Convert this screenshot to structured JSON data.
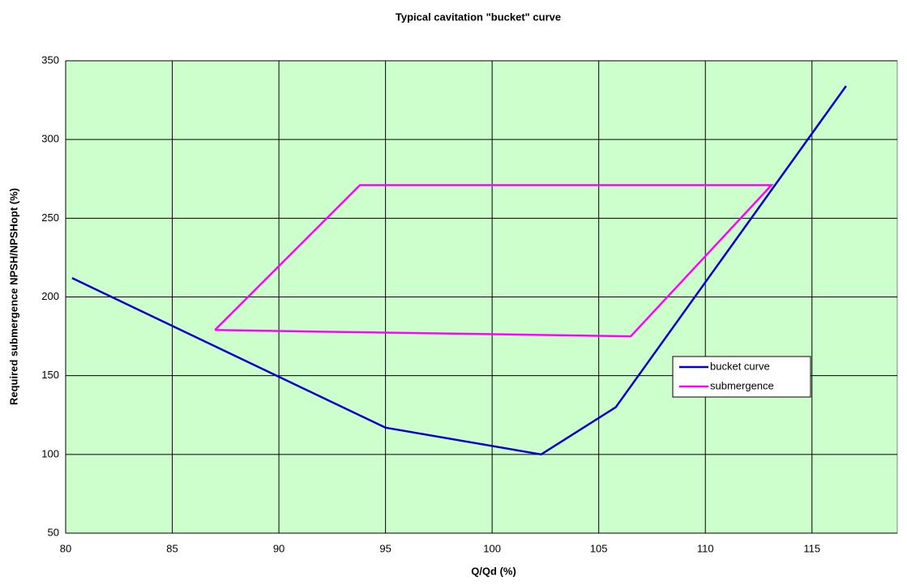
{
  "chart_data": {
    "type": "line",
    "title": "Typical cavitation \"bucket\" curve",
    "x_label": "Q/Qd (%)",
    "y_label": "Required submergence NPSH/NPSHopt (%)",
    "series": [
      {
        "name": "bucket curve",
        "color": "#0000cc",
        "x": [
          80.3,
          95,
          102.3,
          105.8,
          116.6
        ],
        "values": [
          212,
          117,
          100,
          130,
          334
        ]
      },
      {
        "name": "submergence",
        "color": "#ff00ff",
        "x": [
          87,
          93.8,
          113.1,
          106.5,
          87
        ],
        "values": [
          179,
          271,
          271,
          175,
          179
        ]
      }
    ],
    "xlim": [
      80,
      119
    ],
    "xticks": [
      80,
      85,
      90,
      95,
      100,
      105,
      110,
      115
    ],
    "ylim": [
      50,
      350
    ],
    "yticks": [
      50,
      100,
      150,
      200,
      250,
      300,
      350
    ],
    "grid": true,
    "background": "#ccffcc",
    "legend": "right"
  }
}
